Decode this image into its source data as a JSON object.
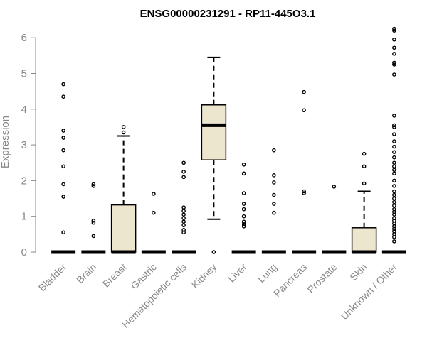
{
  "chart_data": {
    "type": "boxplot",
    "title": "ENSG00000231291 - RP11-445O3.1",
    "xlabel": "",
    "ylabel": "Expression",
    "ylim": [
      0,
      6.2
    ],
    "yticks": [
      0,
      1,
      2,
      3,
      4,
      5,
      6
    ],
    "grid": false,
    "box_color": "#ede6cf",
    "categories": [
      "Bladder",
      "Brain",
      "Breast",
      "Gastric",
      "Hematopoietic cells",
      "Kidney",
      "Liver",
      "Lung",
      "Pancreas",
      "Prostate",
      "Skin",
      "Unknown / Other"
    ],
    "boxes": [
      {
        "category": "Bladder",
        "min": 0,
        "q1": 0,
        "median": 0,
        "q3": 0,
        "max": 0,
        "outliers": [
          0.55,
          1.55,
          1.9,
          2.4,
          2.85,
          3.2,
          3.4,
          4.35,
          4.7
        ]
      },
      {
        "category": "Brain",
        "min": 0,
        "q1": 0,
        "median": 0,
        "q3": 0,
        "max": 0,
        "outliers": [
          0.45,
          0.82,
          0.88,
          1.85,
          1.9
        ]
      },
      {
        "category": "Breast",
        "min": 0,
        "q1": 0,
        "median": 0,
        "q3": 1.32,
        "max": 3.25,
        "outliers": [
          3.35,
          3.5
        ]
      },
      {
        "category": "Gastric",
        "min": 0,
        "q1": 0,
        "median": 0,
        "q3": 0,
        "max": 0,
        "outliers": [
          1.1,
          1.63
        ]
      },
      {
        "category": "Hematopoietic cells",
        "min": 0,
        "q1": 0,
        "median": 0,
        "q3": 0,
        "max": 0,
        "outliers": [
          0.55,
          0.62,
          0.75,
          0.85,
          0.95,
          1.05,
          1.15,
          1.25,
          2.1,
          2.25,
          2.5
        ]
      },
      {
        "category": "Kidney",
        "min": 0.92,
        "q1": 2.58,
        "median": 3.55,
        "q3": 4.12,
        "max": 5.45,
        "outliers": [
          0
        ]
      },
      {
        "category": "Liver",
        "min": 0,
        "q1": 0,
        "median": 0,
        "q3": 0,
        "max": 0,
        "outliers": [
          0.72,
          0.78,
          0.85,
          1.0,
          1.2,
          1.35,
          1.65,
          2.2,
          2.45
        ]
      },
      {
        "category": "Lung",
        "min": 0,
        "q1": 0,
        "median": 0,
        "q3": 0,
        "max": 0,
        "outliers": [
          1.1,
          1.35,
          1.6,
          1.95,
          2.15,
          2.85
        ]
      },
      {
        "category": "Pancreas",
        "min": 0,
        "q1": 0,
        "median": 0,
        "q3": 0,
        "max": 0,
        "outliers": [
          1.65,
          1.7,
          3.97,
          4.48
        ]
      },
      {
        "category": "Prostate",
        "min": 0,
        "q1": 0,
        "median": 0,
        "q3": 0,
        "max": 0,
        "outliers": [
          1.83
        ]
      },
      {
        "category": "Skin",
        "min": 0,
        "q1": 0,
        "median": 0,
        "q3": 0.68,
        "max": 1.7,
        "outliers": [
          1.92,
          2.4,
          2.75
        ]
      },
      {
        "category": "Unknown / Other",
        "min": 0,
        "q1": 0,
        "median": 0,
        "q3": 0,
        "max": 0,
        "outliers": [
          0.3,
          0.42,
          0.5,
          0.58,
          0.65,
          0.72,
          0.8,
          0.88,
          0.95,
          1.05,
          1.12,
          1.2,
          1.3,
          1.4,
          1.5,
          1.6,
          1.7,
          1.85,
          2.0,
          2.2,
          2.3,
          2.4,
          2.5,
          2.65,
          2.8,
          2.95,
          3.1,
          3.3,
          3.5,
          3.55,
          3.82,
          4.97,
          5.25,
          5.3,
          5.55,
          5.72,
          5.95,
          6.2,
          6.25
        ]
      }
    ]
  }
}
